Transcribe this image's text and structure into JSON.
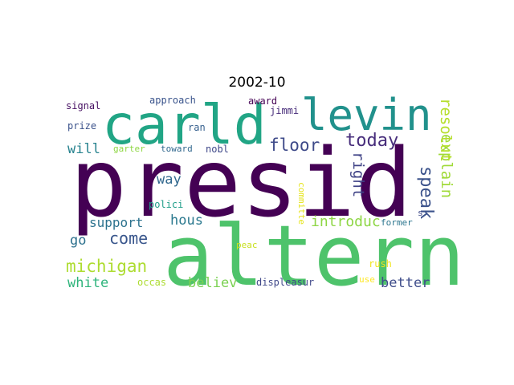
{
  "title": "2002-10",
  "words": [
    {
      "text": "presid",
      "color": "#440154"
    },
    {
      "text": "altern",
      "color": "#4ec36b"
    },
    {
      "text": "carld",
      "color": "#21a585"
    },
    {
      "text": "levin",
      "color": "#21918c"
    },
    {
      "text": "speak",
      "color": "#3b528b"
    },
    {
      "text": "today",
      "color": "#472d7b"
    },
    {
      "text": "floor",
      "color": "#3e4a89"
    },
    {
      "text": "right",
      "color": "#414487"
    },
    {
      "text": "explain",
      "color": "#a0da39"
    },
    {
      "text": "resolut",
      "color": "#b5de2b"
    },
    {
      "text": "michigan",
      "color": "#addc30"
    },
    {
      "text": "come",
      "color": "#39568c"
    },
    {
      "text": "support",
      "color": "#2c728e"
    },
    {
      "text": "introduc",
      "color": "#8ed645"
    },
    {
      "text": "white",
      "color": "#2fb47c"
    },
    {
      "text": "believ",
      "color": "#7ad151"
    },
    {
      "text": "better",
      "color": "#3e4c8a"
    },
    {
      "text": "will",
      "color": "#26828e"
    },
    {
      "text": "way",
      "color": "#31688e"
    },
    {
      "text": "hous",
      "color": "#2a788e"
    },
    {
      "text": "go",
      "color": "#2d718e"
    },
    {
      "text": "signal",
      "color": "#471063"
    },
    {
      "text": "approach",
      "color": "#3a548c"
    },
    {
      "text": "award",
      "color": "#440154"
    },
    {
      "text": "jimmi",
      "color": "#472c7a"
    },
    {
      "text": "prize",
      "color": "#3b528b"
    },
    {
      "text": "ran",
      "color": "#355f8d"
    },
    {
      "text": "garter",
      "color": "#8fd744"
    },
    {
      "text": "toward",
      "color": "#31688e"
    },
    {
      "text": "nobl",
      "color": "#3f4889"
    },
    {
      "text": "polici",
      "color": "#1f9e89"
    },
    {
      "text": "committe",
      "color": "#e5e419"
    },
    {
      "text": "s",
      "color": "#3e4989"
    },
    {
      "text": "former",
      "color": "#2b758e"
    },
    {
      "text": "peac",
      "color": "#c8e020"
    },
    {
      "text": "rush",
      "color": "#f1e51d"
    },
    {
      "text": "occas",
      "color": "#addc30"
    },
    {
      "text": "displeasur",
      "color": "#3f4889"
    },
    {
      "text": "use",
      "color": "#fde725"
    }
  ]
}
